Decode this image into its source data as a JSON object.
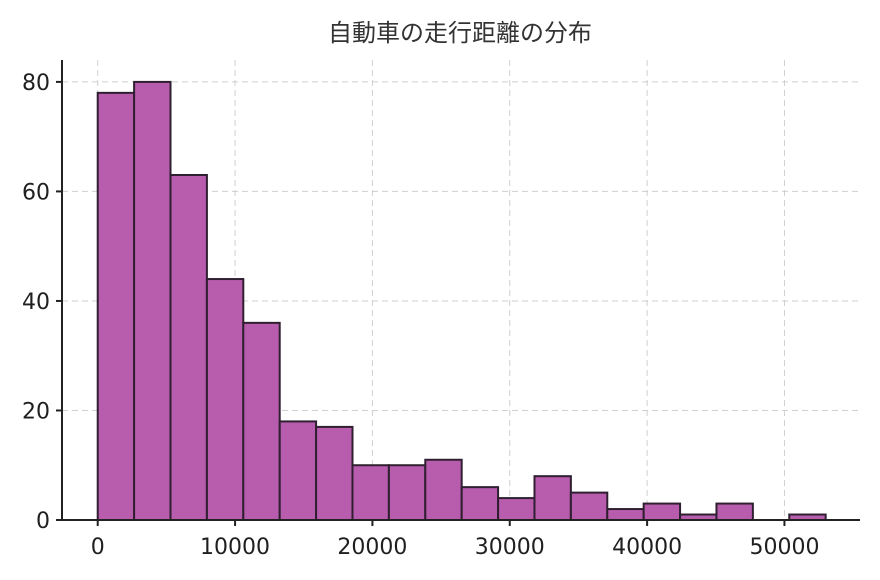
{
  "chart_data": {
    "type": "bar",
    "title": "自動車の走行距離の分布",
    "xlabel": "",
    "ylabel": "",
    "xlim": [
      -2600,
      55500
    ],
    "ylim": [
      0,
      84
    ],
    "grid": true,
    "bar_color": "#b85cae",
    "edge_color": "#2f1f30",
    "x_ticks": [
      0,
      10000,
      20000,
      30000,
      40000,
      50000
    ],
    "x_tick_labels": [
      "0",
      "10000",
      "20000",
      "30000",
      "40000",
      "50000"
    ],
    "y_ticks": [
      0,
      20,
      40,
      60,
      80
    ],
    "y_tick_labels": [
      "0",
      "20",
      "40",
      "60",
      "80"
    ],
    "bins": [
      {
        "x0": 0,
        "x1": 2650,
        "value": 78
      },
      {
        "x0": 2650,
        "x1": 5300,
        "value": 80
      },
      {
        "x0": 5300,
        "x1": 7950,
        "value": 63
      },
      {
        "x0": 7950,
        "x1": 10600,
        "value": 44
      },
      {
        "x0": 10600,
        "x1": 13250,
        "value": 36
      },
      {
        "x0": 13250,
        "x1": 15900,
        "value": 18
      },
      {
        "x0": 15900,
        "x1": 18550,
        "value": 17
      },
      {
        "x0": 18550,
        "x1": 21200,
        "value": 10
      },
      {
        "x0": 21200,
        "x1": 23850,
        "value": 10
      },
      {
        "x0": 23850,
        "x1": 26500,
        "value": 11
      },
      {
        "x0": 26500,
        "x1": 29150,
        "value": 6
      },
      {
        "x0": 29150,
        "x1": 31800,
        "value": 4
      },
      {
        "x0": 31800,
        "x1": 34450,
        "value": 8
      },
      {
        "x0": 34450,
        "x1": 37100,
        "value": 5
      },
      {
        "x0": 37100,
        "x1": 39750,
        "value": 2
      },
      {
        "x0": 39750,
        "x1": 42400,
        "value": 3
      },
      {
        "x0": 42400,
        "x1": 45050,
        "value": 1
      },
      {
        "x0": 45050,
        "x1": 47700,
        "value": 3
      },
      {
        "x0": 47700,
        "x1": 50350,
        "value": 0
      },
      {
        "x0": 50350,
        "x1": 53000,
        "value": 1
      }
    ]
  }
}
